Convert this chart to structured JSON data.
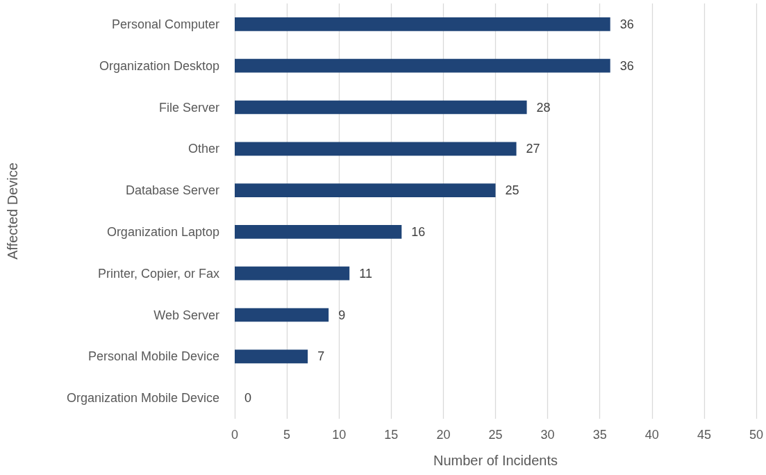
{
  "chart_data": {
    "type": "bar",
    "orientation": "horizontal",
    "xlabel": "Number of Incidents",
    "ylabel": "Affected Device",
    "categories": [
      "Personal Computer",
      "Organization Desktop",
      "File Server",
      "Other",
      "Database Server",
      "Organization Laptop",
      "Printer, Copier, or Fax",
      "Web Server",
      "Personal Mobile Device",
      "Organization Mobile Device"
    ],
    "values": [
      36,
      36,
      28,
      27,
      25,
      16,
      11,
      9,
      7,
      0
    ],
    "color": "#1f4477",
    "xlim": [
      0,
      50
    ],
    "xticks": [
      0,
      5,
      10,
      15,
      20,
      25,
      30,
      35,
      40,
      45,
      50
    ],
    "grid": "x",
    "data_labels": true
  }
}
